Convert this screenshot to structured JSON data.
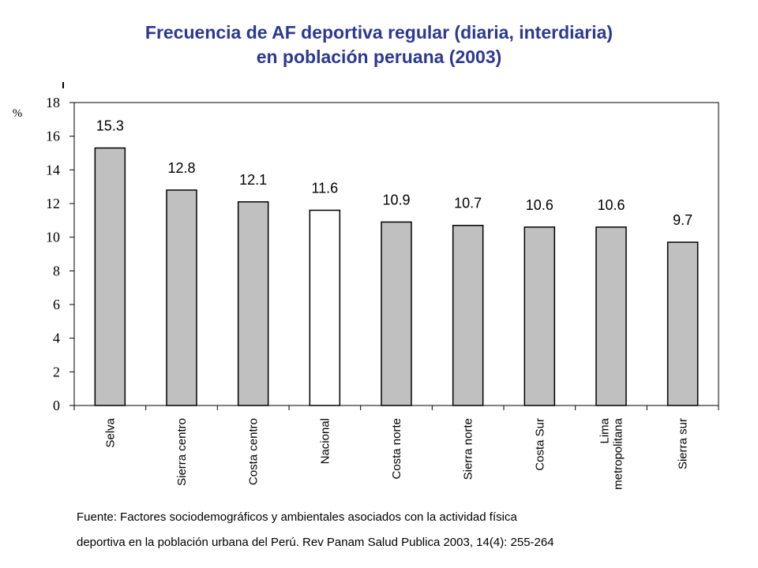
{
  "chart_data": {
    "type": "bar",
    "title_line1": "Frecuencia de AF deportiva regular (diaria, interdiaria)",
    "title_line2": "en población peruana (2003)",
    "ylabel": "%",
    "xlabel": "",
    "ylim": [
      0,
      18
    ],
    "yticks": [
      "0",
      "2",
      "4",
      "6",
      "8",
      "10",
      "12",
      "14",
      "16",
      "18"
    ],
    "categories": [
      [
        "Selva"
      ],
      [
        "Sierra centro"
      ],
      [
        "Costa centro"
      ],
      [
        "Nacional"
      ],
      [
        "Costa norte"
      ],
      [
        "Sierra norte"
      ],
      [
        "Costa Sur"
      ],
      [
        "Lima",
        "metropolitana"
      ],
      [
        "Sierra sur"
      ]
    ],
    "values": [
      15.3,
      12.8,
      12.1,
      11.6,
      10.9,
      10.7,
      10.6,
      10.6,
      9.7
    ],
    "value_labels": [
      "15.3",
      "12.8",
      "12.1",
      "11.6",
      "10.9",
      "10.7",
      "10.6",
      "10.6",
      "9.7"
    ],
    "highlight_category": "Nacional",
    "colors": {
      "bar": "#c0c0c0",
      "highlight_bar": "#ffffff",
      "stroke": "#000000",
      "title": "#2b3990"
    },
    "grid": false,
    "legend": "none"
  },
  "source": {
    "line1": "Fuente: Factores sociodemográficos y ambientales asociados con la actividad física",
    "line2": "deportiva en la población urbana del Perú. Rev Panam Salud Publica 2003, 14(4): 255-264"
  }
}
